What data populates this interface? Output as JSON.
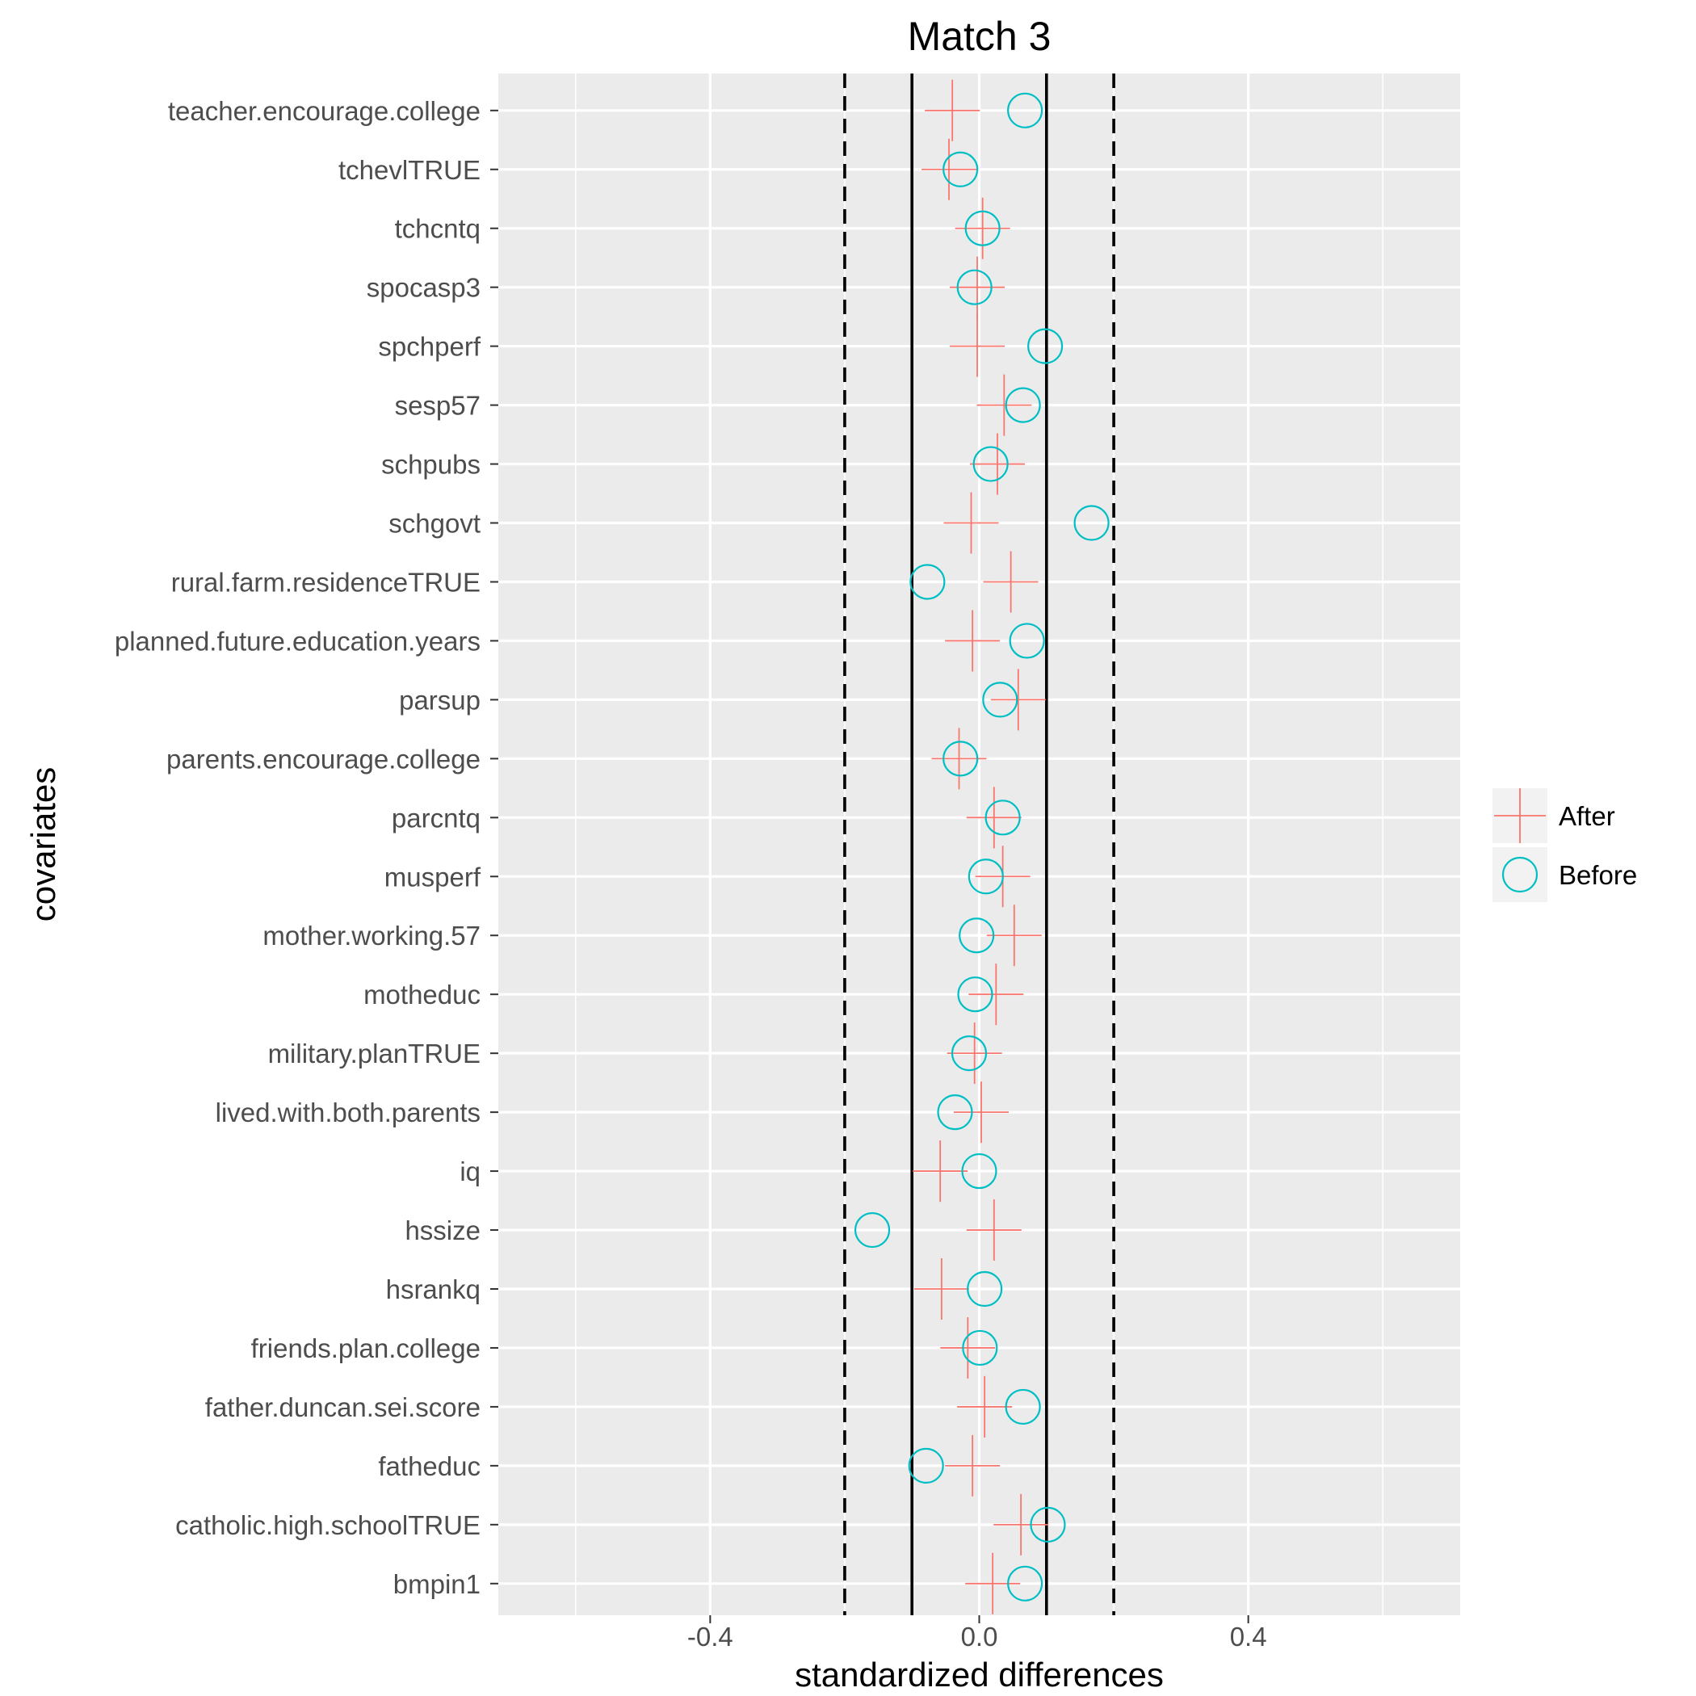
{
  "chart_data": {
    "type": "scatter",
    "title": "Match 3",
    "xlabel": "standardized differences",
    "ylabel": "covariates",
    "xlim": [
      -0.715,
      0.715
    ],
    "x_ticks": [
      -0.4,
      0.0,
      0.4
    ],
    "x_tick_labels": [
      "-0.4",
      "0.0",
      "0.4"
    ],
    "x_minor_grid": [
      -0.6,
      -0.2,
      0.2,
      0.6
    ],
    "grid": true,
    "legend_position": "right",
    "reference_lines": [
      {
        "x": -0.2,
        "style": "dashed",
        "color": "#000000"
      },
      {
        "x": -0.1,
        "style": "solid",
        "color": "#000000"
      },
      {
        "x": 0.1,
        "style": "solid",
        "color": "#000000"
      },
      {
        "x": 0.2,
        "style": "dashed",
        "color": "#000000"
      }
    ],
    "categories": [
      "teacher.encourage.college",
      "tchevlTRUE",
      "tchcntq",
      "spocasp3",
      "spchperf",
      "sesp57",
      "schpubs",
      "schgovt",
      "rural.farm.residenceTRUE",
      "planned.future.education.years",
      "parsup",
      "parents.encourage.college",
      "parcntq",
      "musperf",
      "mother.working.57",
      "motheduc",
      "military.planTRUE",
      "lived.with.both.parents",
      "iq",
      "hssize",
      "hsrankq",
      "friends.plan.college",
      "father.duncan.sei.score",
      "fatheduc",
      "catholic.high.schoolTRUE",
      "bmpin1"
    ],
    "series": [
      {
        "name": "After",
        "marker": "plus",
        "color": "#F8766D",
        "values": [
          -0.04,
          -0.045,
          0.005,
          -0.003,
          -0.003,
          0.037,
          0.027,
          -0.012,
          0.047,
          -0.01,
          0.058,
          -0.03,
          0.022,
          0.035,
          0.052,
          0.025,
          -0.007,
          0.003,
          -0.058,
          0.022,
          -0.056,
          -0.017,
          0.008,
          -0.01,
          0.062,
          0.02
        ]
      },
      {
        "name": "Before",
        "marker": "circle",
        "color": "#00BFC4",
        "values": [
          0.068,
          -0.028,
          0.005,
          -0.007,
          0.098,
          0.065,
          0.017,
          0.167,
          -0.077,
          0.071,
          0.031,
          -0.028,
          0.035,
          0.01,
          -0.004,
          -0.006,
          -0.015,
          -0.036,
          0.0,
          -0.159,
          0.008,
          0.001,
          0.065,
          -0.079,
          0.102,
          0.068
        ]
      }
    ]
  },
  "legend": {
    "items": [
      {
        "label": "After",
        "marker": "plus",
        "color": "#F8766D"
      },
      {
        "label": "Before",
        "marker": "circle",
        "color": "#00BFC4"
      }
    ]
  },
  "colors": {
    "panel_bg": "#EBEBEB",
    "grid": "#FFFFFF",
    "axis_text": "#4D4D4D"
  }
}
